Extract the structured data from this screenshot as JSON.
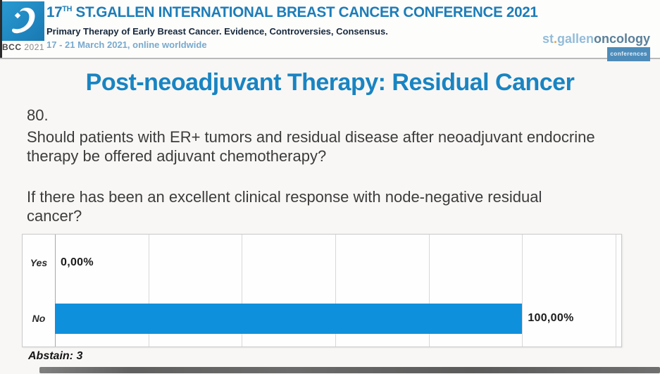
{
  "header": {
    "logo_label_bcc": "BCC",
    "logo_label_year": "2021",
    "title_num": "17",
    "title_sup": "TH",
    "title_rest": " ST.GALLEN INTERNATIONAL BREAST CANCER CONFERENCE 2021",
    "subtitle": "Primary Therapy of Early Breast Cancer. Evidence, Controversies, Consensus.",
    "dates": "17 - 21 March 2021, online worldwide",
    "brand": {
      "st": "st",
      "dot": ".",
      "gallen": "gallen",
      "oncology": "oncology",
      "badge": "conferences"
    }
  },
  "slide": {
    "title": "Post-neoadjuvant Therapy: Residual Cancer",
    "question_number": "80.",
    "question": "Should patients with ER+ tumors and residual disease after neoadjuvant endocrine therapy be offered adjuvant chemotherapy?",
    "condition": "If there has been an excellent clinical response with node-negative residual cancer?",
    "abstain": "Abstain: 3"
  },
  "chart_data": {
    "type": "bar",
    "orientation": "horizontal",
    "categories": [
      "Yes",
      "No"
    ],
    "values": [
      0,
      100
    ],
    "value_labels": [
      "0,00%",
      "100,00%"
    ],
    "xlim": [
      0,
      120
    ],
    "gridline_step_percent": 20,
    "grid": true,
    "legend": false,
    "bar_color": "#0f90dc",
    "title": "",
    "xlabel": "",
    "ylabel": ""
  }
}
